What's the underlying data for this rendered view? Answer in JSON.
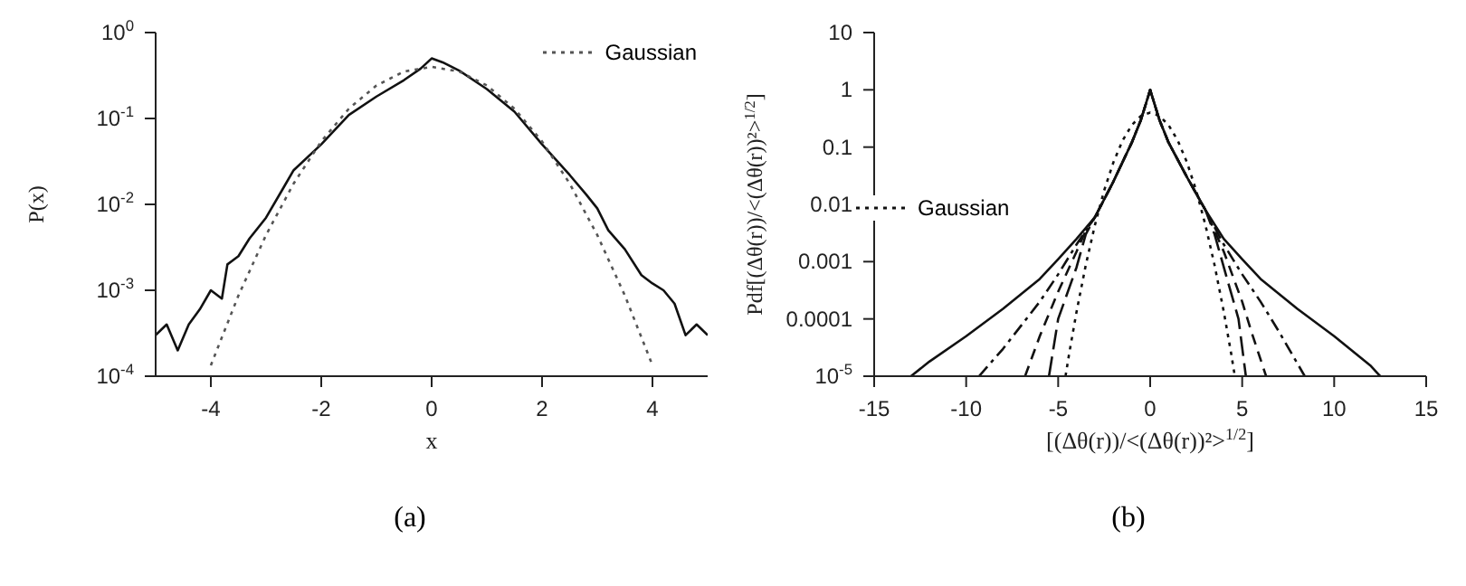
{
  "chart_data": [
    {
      "type": "line",
      "ylabel": "P(x)",
      "xlabel": "x",
      "log": "y",
      "xlim": [
        -5,
        5
      ],
      "xticks": [
        -4,
        -2,
        0,
        2,
        4
      ],
      "ylim": [
        0.0001,
        1
      ],
      "yticks": [
        {
          "value": 0.0001,
          "label": "10$^{-4}$"
        },
        {
          "value": 0.001,
          "label": "10$^{-3}$"
        },
        {
          "value": 0.01,
          "label": "10$^{-2}$"
        },
        {
          "value": 0.1,
          "label": "10$^{-1}$"
        },
        {
          "value": 1,
          "label": "10$^{0}$"
        }
      ],
      "legend": "top right",
      "grid": false,
      "marker": "none",
      "annotations": [
        "(a)"
      ],
      "series": [
        {
          "color": "#111111",
          "line_style": "solid",
          "x": [
            -5,
            -4.8,
            -4.6,
            -4.4,
            -4.2,
            -4,
            -3.8,
            -3.7,
            -3.5,
            -3.3,
            -3,
            -2.7,
            -2.5,
            -2,
            -1.5,
            -1,
            -0.5,
            -0.2,
            0,
            0.2,
            0.5,
            1,
            1.5,
            2,
            2.5,
            2.8,
            3,
            3.2,
            3.5,
            3.8,
            4,
            4.2,
            4.4,
            4.6,
            4.8,
            5
          ],
          "values": [
            0.0003,
            0.0004,
            0.0002,
            0.0004,
            0.0006,
            0.001,
            0.0008,
            0.002,
            0.0025,
            0.004,
            0.007,
            0.015,
            0.025,
            0.05,
            0.11,
            0.18,
            0.28,
            0.38,
            0.5,
            0.45,
            0.36,
            0.22,
            0.12,
            0.05,
            0.022,
            0.013,
            0.009,
            0.005,
            0.003,
            0.0015,
            0.0012,
            0.001,
            0.0007,
            0.0003,
            0.0004,
            0.0003
          ]
        },
        {
          "name": "Gaussian",
          "color": "#555555",
          "line_style": "dotted",
          "x": [
            -4,
            -3.5,
            -3,
            -2.5,
            -2,
            -1.5,
            -1,
            -0.5,
            0,
            0.5,
            1,
            1.5,
            2,
            2.5,
            3,
            3.5,
            4
          ],
          "values": [
            0.000134,
            0.00087,
            0.0044,
            0.0175,
            0.054,
            0.13,
            0.242,
            0.352,
            0.399,
            0.352,
            0.242,
            0.13,
            0.054,
            0.0175,
            0.0044,
            0.00087,
            0.000134
          ]
        }
      ]
    },
    {
      "type": "line",
      "ylabel": "Pdf[(Δθ(r))/<(Δθ(r))²>$^{1/2}$]",
      "xlabel": "[(Δθ(r))/<(Δθ(r))²>$^{1/2}$]",
      "log": "y",
      "xlim": [
        -15,
        15
      ],
      "xticks": [
        -15,
        -10,
        -5,
        0,
        5,
        10,
        15
      ],
      "ylim": [
        1e-05,
        10
      ],
      "yticks": [
        {
          "value": 1e-05,
          "label": "10$^{-5}$"
        },
        0.0001,
        0.001,
        0.01,
        0.1,
        1,
        10
      ],
      "legend": "left",
      "grid": false,
      "marker": "none",
      "annotations": [
        "(b)"
      ],
      "series": [
        {
          "color": "#111111",
          "line_style": "solid",
          "x": [
            -13,
            -12,
            -10,
            -8,
            -6,
            -5,
            -4,
            -3,
            -2,
            -1,
            -0.5,
            0,
            0.5,
            1,
            2,
            3,
            4,
            5,
            6,
            8,
            10,
            12,
            12.5
          ],
          "values": [
            1e-05,
            1.8e-05,
            5e-05,
            0.00015,
            0.0005,
            0.0011,
            0.0025,
            0.006,
            0.025,
            0.12,
            0.3,
            1,
            0.3,
            0.12,
            0.03,
            0.008,
            0.0025,
            0.0011,
            0.0005,
            0.00015,
            5e-05,
            1.5e-05,
            1e-05
          ]
        },
        {
          "color": "#111111",
          "line_style": "dashdot",
          "x": [
            -9.3,
            -8,
            -6,
            -5,
            -4,
            -3,
            -2,
            -1,
            -0.5,
            0,
            0.5,
            1,
            2,
            3,
            4,
            5,
            6,
            7,
            8.4
          ],
          "values": [
            1e-05,
            3e-05,
            0.0002,
            0.0006,
            0.002,
            0.006,
            0.025,
            0.12,
            0.3,
            1,
            0.3,
            0.12,
            0.03,
            0.008,
            0.002,
            0.0006,
            0.0002,
            6e-05,
            1e-05
          ]
        },
        {
          "color": "#111111",
          "line_style": "dashed",
          "x": [
            -6.8,
            -6,
            -5,
            -4,
            -3.5,
            -3,
            -2,
            -1,
            -0.5,
            0,
            0.5,
            1,
            2,
            3,
            4,
            5,
            5.5,
            6.3
          ],
          "values": [
            1e-05,
            5e-05,
            0.0003,
            0.0015,
            0.0035,
            0.006,
            0.025,
            0.12,
            0.3,
            1,
            0.3,
            0.12,
            0.03,
            0.008,
            0.0015,
            0.0002,
            6e-05,
            1e-05
          ]
        },
        {
          "color": "#111111",
          "line_style": "longdash",
          "x": [
            -5.5,
            -5,
            -4,
            -3.5,
            -3,
            -2,
            -1,
            -0.5,
            0,
            0.5,
            1,
            2,
            3,
            3.5,
            4,
            4.8,
            5.2
          ],
          "values": [
            1e-05,
            0.0001,
            0.0008,
            0.003,
            0.006,
            0.025,
            0.12,
            0.3,
            1,
            0.3,
            0.12,
            0.03,
            0.008,
            0.003,
            0.0008,
            0.0001,
            1e-05
          ]
        },
        {
          "name": "Gaussian",
          "color": "#111111",
          "line_style": "dotted",
          "x": [
            -4.6,
            -4.4,
            -4,
            -3.5,
            -3,
            -2.5,
            -2,
            -1.5,
            -1,
            -0.5,
            0,
            0.5,
            1,
            1.5,
            2,
            2.5,
            3,
            3.5,
            4,
            4.4,
            4.6
          ],
          "values": [
            1e-05,
            2.5e-05,
            0.000134,
            0.00087,
            0.0044,
            0.0175,
            0.054,
            0.13,
            0.242,
            0.352,
            0.399,
            0.352,
            0.242,
            0.13,
            0.054,
            0.0175,
            0.0044,
            0.00087,
            0.000134,
            2.5e-05,
            1e-05
          ]
        }
      ]
    }
  ]
}
